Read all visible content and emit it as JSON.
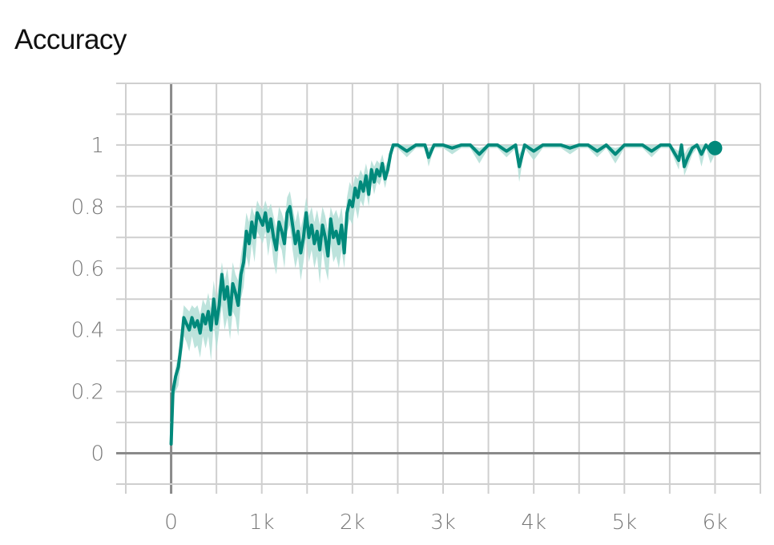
{
  "header": {
    "title": "Accuracy"
  },
  "colors": {
    "line": "#00897b",
    "band": "#b2ded6",
    "grid": "#cfcfcf",
    "zero_axis": "#8a8a8a",
    "tick_text": "#777777"
  },
  "chart_data": {
    "type": "line",
    "title": "Accuracy",
    "xlabel": "",
    "ylabel": "",
    "xlim": [
      -500,
      6500
    ],
    "ylim": [
      -0.1,
      1.2
    ],
    "grid": true,
    "x_ticks": [
      0,
      1000,
      2000,
      3000,
      4000,
      5000,
      6000
    ],
    "x_tick_labels": [
      "0",
      "1k",
      "2k",
      "3k",
      "4k",
      "5k",
      "6k"
    ],
    "y_ticks": [
      0,
      0.2,
      0.4,
      0.6,
      0.8,
      1
    ],
    "y_tick_labels": [
      "0",
      "0.2",
      "0.4",
      "0.6",
      "0.8",
      "1"
    ],
    "series": [
      {
        "x": [
          0,
          20,
          50,
          80,
          110,
          140,
          170,
          200,
          230,
          260,
          290,
          320,
          350,
          380,
          410,
          440,
          470,
          500,
          530,
          560,
          590,
          620,
          650,
          680,
          710,
          740,
          770,
          800,
          830,
          860,
          890,
          920,
          950,
          980,
          1010,
          1040,
          1070,
          1100,
          1130,
          1160,
          1190,
          1220,
          1250,
          1280,
          1310,
          1340,
          1370,
          1400,
          1430,
          1460,
          1490,
          1520,
          1550,
          1580,
          1610,
          1640,
          1670,
          1700,
          1730,
          1760,
          1790,
          1820,
          1850,
          1880,
          1910,
          1940,
          1970,
          2000,
          2030,
          2060,
          2090,
          2120,
          2150,
          2180,
          2210,
          2240,
          2270,
          2300,
          2330,
          2360,
          2390,
          2420,
          2450,
          2500,
          2600,
          2700,
          2800,
          2840,
          2900,
          3000,
          3100,
          3200,
          3300,
          3400,
          3500,
          3600,
          3700,
          3800,
          3840,
          3900,
          4000,
          4100,
          4200,
          4300,
          4400,
          4500,
          4600,
          4700,
          4800,
          4900,
          5000,
          5100,
          5200,
          5300,
          5400,
          5500,
          5600,
          5630,
          5660,
          5700,
          5750,
          5800,
          5850,
          5900,
          5950,
          6000
        ],
        "y": [
          0.03,
          0.2,
          0.25,
          0.28,
          0.35,
          0.44,
          0.42,
          0.4,
          0.44,
          0.41,
          0.43,
          0.39,
          0.45,
          0.42,
          0.46,
          0.4,
          0.5,
          0.42,
          0.48,
          0.58,
          0.5,
          0.54,
          0.45,
          0.55,
          0.52,
          0.48,
          0.58,
          0.62,
          0.72,
          0.68,
          0.75,
          0.7,
          0.78,
          0.76,
          0.74,
          0.78,
          0.72,
          0.76,
          0.7,
          0.66,
          0.75,
          0.72,
          0.68,
          0.78,
          0.8,
          0.74,
          0.68,
          0.72,
          0.65,
          0.7,
          0.78,
          0.7,
          0.74,
          0.68,
          0.72,
          0.66,
          0.74,
          0.7,
          0.64,
          0.76,
          0.7,
          0.72,
          0.68,
          0.74,
          0.65,
          0.78,
          0.82,
          0.8,
          0.86,
          0.83,
          0.88,
          0.85,
          0.9,
          0.84,
          0.92,
          0.88,
          0.92,
          0.9,
          0.94,
          0.89,
          0.92,
          0.97,
          1,
          1,
          0.98,
          1,
          1,
          0.96,
          1,
          1,
          0.99,
          1,
          1,
          0.97,
          1,
          1,
          0.98,
          1,
          0.93,
          1,
          0.98,
          1,
          1,
          1,
          0.99,
          1,
          1,
          0.98,
          1,
          0.97,
          1,
          1,
          1,
          0.98,
          1,
          1,
          0.95,
          1,
          0.93,
          0.96,
          0.99,
          1,
          0.97,
          1,
          0.98,
          0.99
        ],
        "band_lower": [
          0.03,
          0.18,
          0.2,
          0.22,
          0.3,
          0.38,
          0.36,
          0.33,
          0.38,
          0.34,
          0.35,
          0.31,
          0.38,
          0.34,
          0.38,
          0.3,
          0.42,
          0.33,
          0.4,
          0.48,
          0.4,
          0.44,
          0.37,
          0.46,
          0.44,
          0.38,
          0.5,
          0.54,
          0.64,
          0.6,
          0.68,
          0.62,
          0.72,
          0.7,
          0.68,
          0.72,
          0.64,
          0.7,
          0.62,
          0.58,
          0.68,
          0.66,
          0.6,
          0.72,
          0.74,
          0.66,
          0.6,
          0.64,
          0.56,
          0.62,
          0.7,
          0.62,
          0.66,
          0.6,
          0.64,
          0.55,
          0.66,
          0.6,
          0.56,
          0.68,
          0.62,
          0.64,
          0.6,
          0.66,
          0.6,
          0.72,
          0.76,
          0.74,
          0.8,
          0.76,
          0.82,
          0.8,
          0.85,
          0.8,
          0.88,
          0.84,
          0.88,
          0.87,
          0.9,
          0.86,
          0.9,
          0.95,
          0.99,
          0.99,
          0.96,
          0.99,
          0.99,
          0.93,
          0.99,
          0.99,
          0.97,
          0.99,
          0.99,
          0.94,
          0.99,
          0.99,
          0.96,
          0.99,
          0.88,
          0.99,
          0.95,
          0.99,
          0.99,
          0.99,
          0.97,
          0.99,
          0.99,
          0.96,
          0.99,
          0.94,
          0.99,
          0.99,
          0.99,
          0.96,
          0.99,
          0.99,
          0.92,
          0.99,
          0.9,
          0.93,
          0.97,
          0.99,
          0.93,
          0.99,
          0.94,
          0.97
        ],
        "band_upper": [
          0.03,
          0.22,
          0.28,
          0.32,
          0.4,
          0.48,
          0.47,
          0.46,
          0.48,
          0.47,
          0.48,
          0.45,
          0.5,
          0.48,
          0.52,
          0.47,
          0.56,
          0.5,
          0.55,
          0.62,
          0.56,
          0.6,
          0.53,
          0.62,
          0.58,
          0.56,
          0.64,
          0.7,
          0.78,
          0.75,
          0.8,
          0.77,
          0.82,
          0.8,
          0.79,
          0.82,
          0.79,
          0.81,
          0.77,
          0.73,
          0.8,
          0.78,
          0.75,
          0.83,
          0.85,
          0.8,
          0.75,
          0.79,
          0.73,
          0.77,
          0.83,
          0.77,
          0.8,
          0.75,
          0.79,
          0.74,
          0.8,
          0.77,
          0.72,
          0.8,
          0.77,
          0.79,
          0.76,
          0.8,
          0.72,
          0.83,
          0.88,
          0.86,
          0.9,
          0.89,
          0.92,
          0.9,
          0.94,
          0.9,
          0.95,
          0.93,
          0.95,
          0.94,
          0.97,
          0.93,
          0.95,
          0.99,
          1,
          1,
          1,
          1,
          1,
          0.99,
          1,
          1,
          1,
          1,
          1,
          0.99,
          1,
          1,
          1,
          1,
          0.97,
          1,
          1,
          1,
          1,
          1,
          1,
          1,
          1,
          1,
          1,
          0.99,
          1,
          1,
          1,
          1,
          1,
          1,
          0.98,
          1,
          0.97,
          0.99,
          1,
          1,
          1,
          1,
          1,
          1
        ]
      }
    ]
  }
}
